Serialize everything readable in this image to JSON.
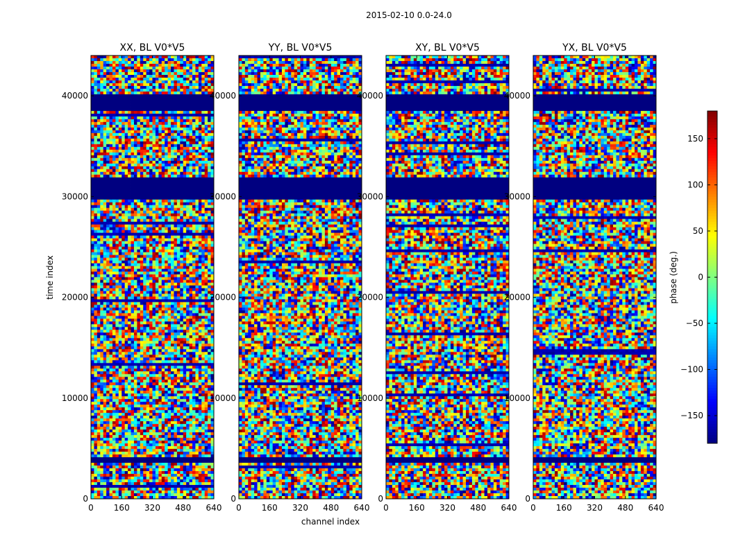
{
  "figure": {
    "suptitle": "2015-02-10 0.0-24.0",
    "xlabel": "channel index",
    "ylabel": "time index",
    "colorbar_label": "phase (deg.)"
  },
  "chart_data": {
    "type": "heatmap",
    "x_range": [
      0,
      640
    ],
    "y_range": [
      0,
      44000
    ],
    "x_ticks": [
      0,
      160,
      320,
      480,
      640
    ],
    "y_ticks": [
      0,
      10000,
      20000,
      30000,
      40000
    ],
    "colorbar": {
      "range": [
        -180,
        180
      ],
      "ticks": [
        150,
        100,
        50,
        0,
        -50,
        -100,
        -150
      ],
      "tick_labels": [
        "150",
        "100",
        "50",
        "0",
        "−50",
        "−100",
        "−150"
      ],
      "colormap": "jet"
    },
    "panels": [
      {
        "title": "XX, BL V0*V5"
      },
      {
        "title": "YY, BL V0*V5"
      },
      {
        "title": "XY, BL V0*V5"
      },
      {
        "title": "YX, BL V0*V5"
      }
    ],
    "flagged_time_ranges": [
      [
        29700,
        31800
      ],
      [
        38500,
        40200
      ],
      [
        3500,
        4200
      ]
    ],
    "flagged_phase": -180
  }
}
